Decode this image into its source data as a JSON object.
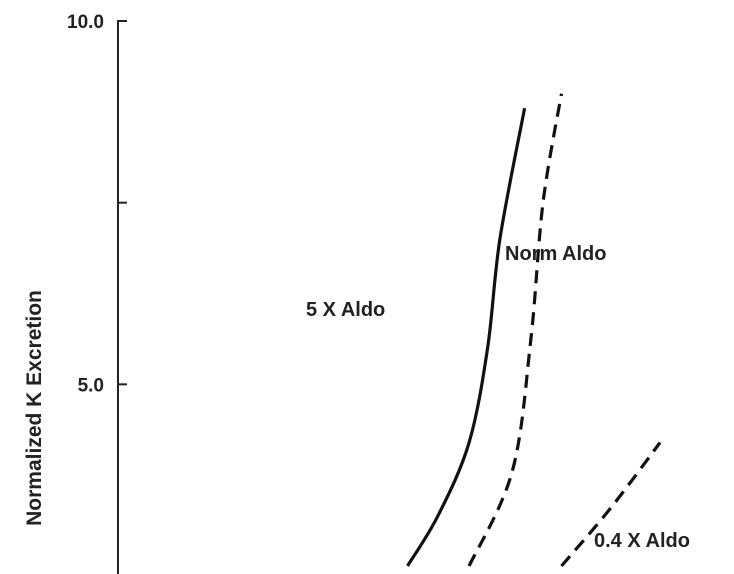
{
  "chart_data": {
    "type": "line",
    "title": "",
    "xlabel": "",
    "ylabel": "Normalized K Excretion",
    "y_tick_labels": [
      "10.0",
      "5.0"
    ],
    "y_ticks": [
      10.0,
      7.5,
      5.0
    ],
    "ylim": [
      2.5,
      10.0
    ],
    "grid": false,
    "series": [
      {
        "name": "5 X Aldo",
        "style": "solid",
        "points": [
          {
            "x": 0.47,
            "y": 2.5
          },
          {
            "x": 0.52,
            "y": 3.2
          },
          {
            "x": 0.57,
            "y": 4.2
          },
          {
            "x": 0.6,
            "y": 5.5
          },
          {
            "x": 0.62,
            "y": 7.0
          },
          {
            "x": 0.66,
            "y": 8.8
          }
        ]
      },
      {
        "name": "Norm Aldo",
        "style": "dashed",
        "points": [
          {
            "x": 0.57,
            "y": 2.5
          },
          {
            "x": 0.64,
            "y": 3.8
          },
          {
            "x": 0.67,
            "y": 5.6
          },
          {
            "x": 0.69,
            "y": 7.5
          },
          {
            "x": 0.72,
            "y": 9.0
          }
        ]
      },
      {
        "name": "0.4 X Aldo",
        "style": "dashed",
        "points": [
          {
            "x": 0.72,
            "y": 2.5
          },
          {
            "x": 0.8,
            "y": 3.3
          },
          {
            "x": 0.88,
            "y": 4.2
          }
        ]
      }
    ]
  }
}
